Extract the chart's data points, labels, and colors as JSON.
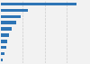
{
  "values": [
    5300000,
    1900000,
    1400000,
    1050000,
    780000,
    560000,
    460000,
    370000,
    280000,
    130000
  ],
  "bar_color": "#2e75b6",
  "background_color": "#f2f2f2",
  "grid_color": "#cccccc",
  "xlim": [
    0,
    6200000
  ],
  "bar_height": 0.45,
  "n_gridlines": 3
}
